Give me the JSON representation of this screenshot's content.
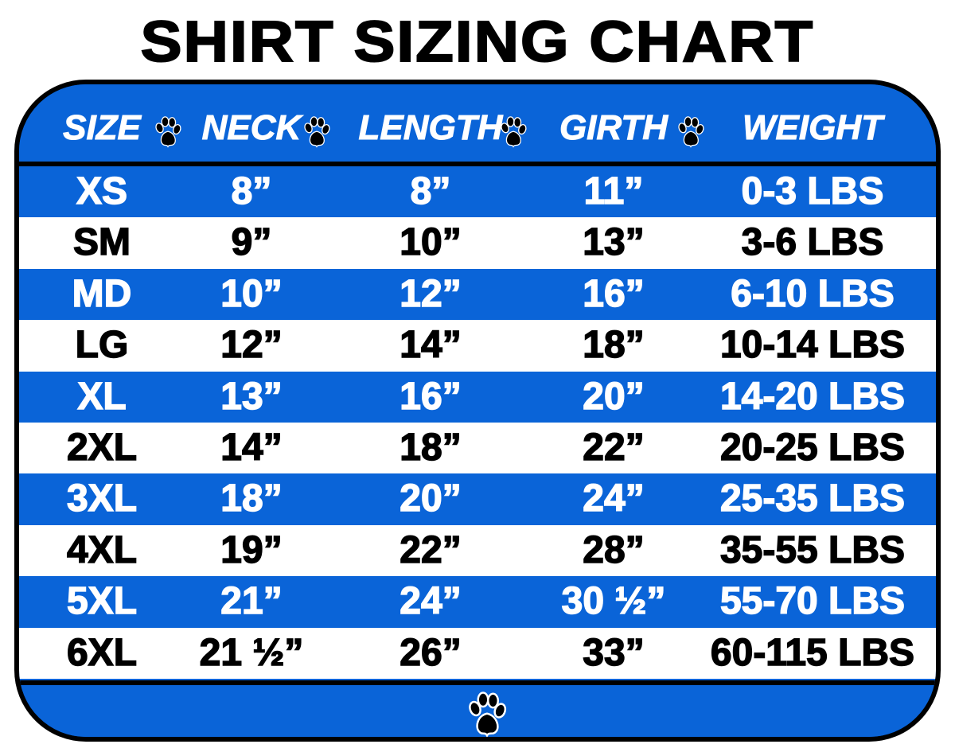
{
  "title": "SHIRT SIZING CHART",
  "colors": {
    "blue": "#0a64d8",
    "white": "#ffffff",
    "text_dark": "#000000"
  },
  "icons": {
    "separator": "paw-print-icon",
    "footer": "paw-print-icon"
  },
  "chart_data": {
    "type": "table",
    "columns": [
      "SIZE",
      "NECK",
      "LENGTH",
      "GIRTH",
      "WEIGHT"
    ],
    "rows": [
      [
        "XS",
        "8”",
        "8”",
        "11”",
        "0-3 LBS"
      ],
      [
        "SM",
        "9”",
        "10”",
        "13”",
        "3-6 LBS"
      ],
      [
        "MD",
        "10”",
        "12”",
        "16”",
        "6-10 LBS"
      ],
      [
        "LG",
        "12”",
        "14”",
        "18”",
        "10-14 LBS"
      ],
      [
        "XL",
        "13”",
        "16”",
        "20”",
        "14-20 LBS"
      ],
      [
        "2XL",
        "14”",
        "18”",
        "22”",
        "20-25 LBS"
      ],
      [
        "3XL",
        "18”",
        "20”",
        "24”",
        "25-35 LBS"
      ],
      [
        "4XL",
        "19”",
        "22”",
        "28”",
        "35-55 LBS"
      ],
      [
        "5XL",
        "21”",
        "24”",
        "30 ½”",
        "55-70 LBS"
      ],
      [
        "6XL",
        "21 ½”",
        "26”",
        "33”",
        "60-115 LBS"
      ]
    ]
  }
}
